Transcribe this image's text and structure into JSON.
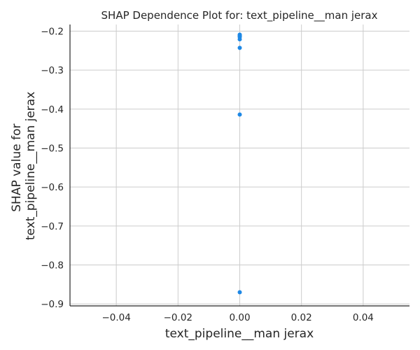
{
  "chart_data": {
    "type": "scatter",
    "title": "SHAP Dependence Plot for: text_pipeline__man jerax",
    "xlabel": "text_pipeline__man jerax",
    "ylabel": [
      "SHAP value for",
      "text_pipeline__man jerax"
    ],
    "xlim": [
      -0.055,
      0.055
    ],
    "ylim": [
      -0.905,
      -0.183
    ],
    "xticks": [
      -0.04,
      -0.02,
      0.0,
      0.02,
      0.04
    ],
    "xtick_labels": [
      "−0.04",
      "−0.02",
      "0.00",
      "0.02",
      "0.04"
    ],
    "yticks": [
      -0.2,
      -0.3,
      -0.4,
      -0.5,
      -0.6,
      -0.7,
      -0.8,
      -0.9
    ],
    "ytick_labels": [
      "−0.2",
      "−0.3",
      "−0.4",
      "−0.5",
      "−0.6",
      "−0.7",
      "−0.8",
      "−0.9"
    ],
    "grid": true,
    "point_color": "#1e88e5",
    "points": [
      {
        "x": 0.0,
        "y": -0.209
      },
      {
        "x": 0.0,
        "y": -0.211
      },
      {
        "x": 0.0,
        "y": -0.213
      },
      {
        "x": 0.0,
        "y": -0.215
      },
      {
        "x": 0.0,
        "y": -0.221
      },
      {
        "x": 0.0,
        "y": -0.243
      },
      {
        "x": 0.0,
        "y": -0.414
      },
      {
        "x": 0.0,
        "y": -0.87
      }
    ]
  }
}
